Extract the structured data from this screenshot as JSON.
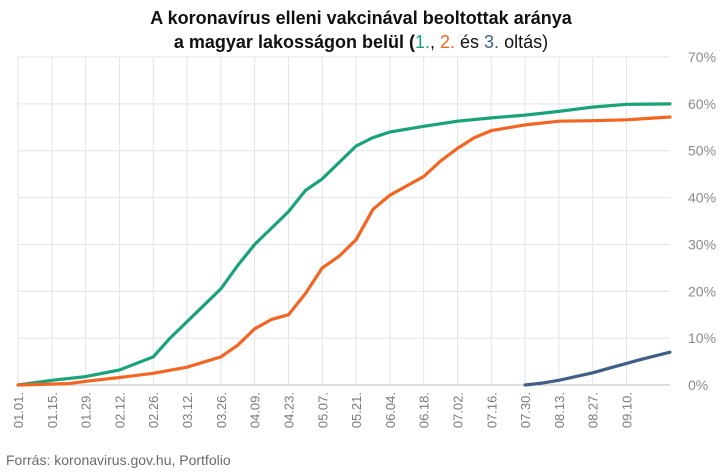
{
  "chart_data": {
    "type": "line",
    "title_line1": "A koronavírus elleni vakcinával beoltottak aránya",
    "title_line2_pre": "a magyar lakosságon belül (",
    "title_dose1": "1.",
    "title_sep1": ", ",
    "title_dose2": "2.",
    "title_sep2": " és ",
    "title_dose3": "3.",
    "title_post": " oltás)",
    "source": "Forrás: koronavirus.gov.hu, Portfolio",
    "x_start": "2021-01-01",
    "x_end": "2021-09-28",
    "x_ticks": [
      "01.01.",
      "01.15.",
      "01.29.",
      "02.12.",
      "02.26.",
      "03.12.",
      "03.26.",
      "04.09.",
      "04.23.",
      "05.07.",
      "05.21.",
      "06.04.",
      "06.18.",
      "07.02.",
      "07.16.",
      "07.30.",
      "08.13.",
      "08.27.",
      "09.10."
    ],
    "y_ticks": [
      "0%",
      "10%",
      "20%",
      "30%",
      "40%",
      "50%",
      "60%",
      "70%"
    ],
    "ylim": [
      0,
      70
    ],
    "grid": true,
    "series": [
      {
        "name": "1.",
        "color": "#1aa37a",
        "points": [
          [
            "2021-01-01",
            0
          ],
          [
            "2021-01-15",
            1
          ],
          [
            "2021-01-29",
            1.8
          ],
          [
            "2021-02-12",
            3.2
          ],
          [
            "2021-02-26",
            6
          ],
          [
            "2021-03-05",
            10
          ],
          [
            "2021-03-12",
            13.5
          ],
          [
            "2021-03-19",
            17
          ],
          [
            "2021-03-26",
            20.5
          ],
          [
            "2021-04-02",
            25.5
          ],
          [
            "2021-04-09",
            30
          ],
          [
            "2021-04-16",
            33.5
          ],
          [
            "2021-04-23",
            37
          ],
          [
            "2021-04-30",
            41.5
          ],
          [
            "2021-05-07",
            44
          ],
          [
            "2021-05-14",
            47.5
          ],
          [
            "2021-05-21",
            51
          ],
          [
            "2021-05-28",
            52.8
          ],
          [
            "2021-06-04",
            54
          ],
          [
            "2021-06-18",
            55.2
          ],
          [
            "2021-07-02",
            56.3
          ],
          [
            "2021-07-16",
            57
          ],
          [
            "2021-07-30",
            57.6
          ],
          [
            "2021-08-13",
            58.4
          ],
          [
            "2021-08-27",
            59.3
          ],
          [
            "2021-09-10",
            59.9
          ],
          [
            "2021-09-28",
            60
          ]
        ]
      },
      {
        "name": "2.",
        "color": "#f26522",
        "points": [
          [
            "2021-01-01",
            0
          ],
          [
            "2021-01-22",
            0.3
          ],
          [
            "2021-01-29",
            0.8
          ],
          [
            "2021-02-12",
            1.6
          ],
          [
            "2021-02-26",
            2.5
          ],
          [
            "2021-03-12",
            3.8
          ],
          [
            "2021-03-26",
            6
          ],
          [
            "2021-04-02",
            8.5
          ],
          [
            "2021-04-09",
            12
          ],
          [
            "2021-04-16",
            14
          ],
          [
            "2021-04-23",
            15
          ],
          [
            "2021-04-30",
            19.5
          ],
          [
            "2021-05-07",
            25
          ],
          [
            "2021-05-14",
            27.5
          ],
          [
            "2021-05-21",
            31
          ],
          [
            "2021-05-28",
            37.5
          ],
          [
            "2021-06-04",
            40.5
          ],
          [
            "2021-06-11",
            42.5
          ],
          [
            "2021-06-18",
            44.5
          ],
          [
            "2021-06-25",
            47.8
          ],
          [
            "2021-07-02",
            50.5
          ],
          [
            "2021-07-09",
            52.8
          ],
          [
            "2021-07-16",
            54.3
          ],
          [
            "2021-07-30",
            55.5
          ],
          [
            "2021-08-13",
            56.3
          ],
          [
            "2021-08-27",
            56.4
          ],
          [
            "2021-09-10",
            56.6
          ],
          [
            "2021-09-28",
            57.2
          ]
        ]
      },
      {
        "name": "3.",
        "color": "#3f5f86",
        "points": [
          [
            "2021-07-30",
            0
          ],
          [
            "2021-08-06",
            0.4
          ],
          [
            "2021-08-13",
            1
          ],
          [
            "2021-08-20",
            1.8
          ],
          [
            "2021-08-27",
            2.6
          ],
          [
            "2021-09-03",
            3.6
          ],
          [
            "2021-09-10",
            4.6
          ],
          [
            "2021-09-17",
            5.6
          ],
          [
            "2021-09-28",
            7
          ]
        ]
      }
    ]
  }
}
